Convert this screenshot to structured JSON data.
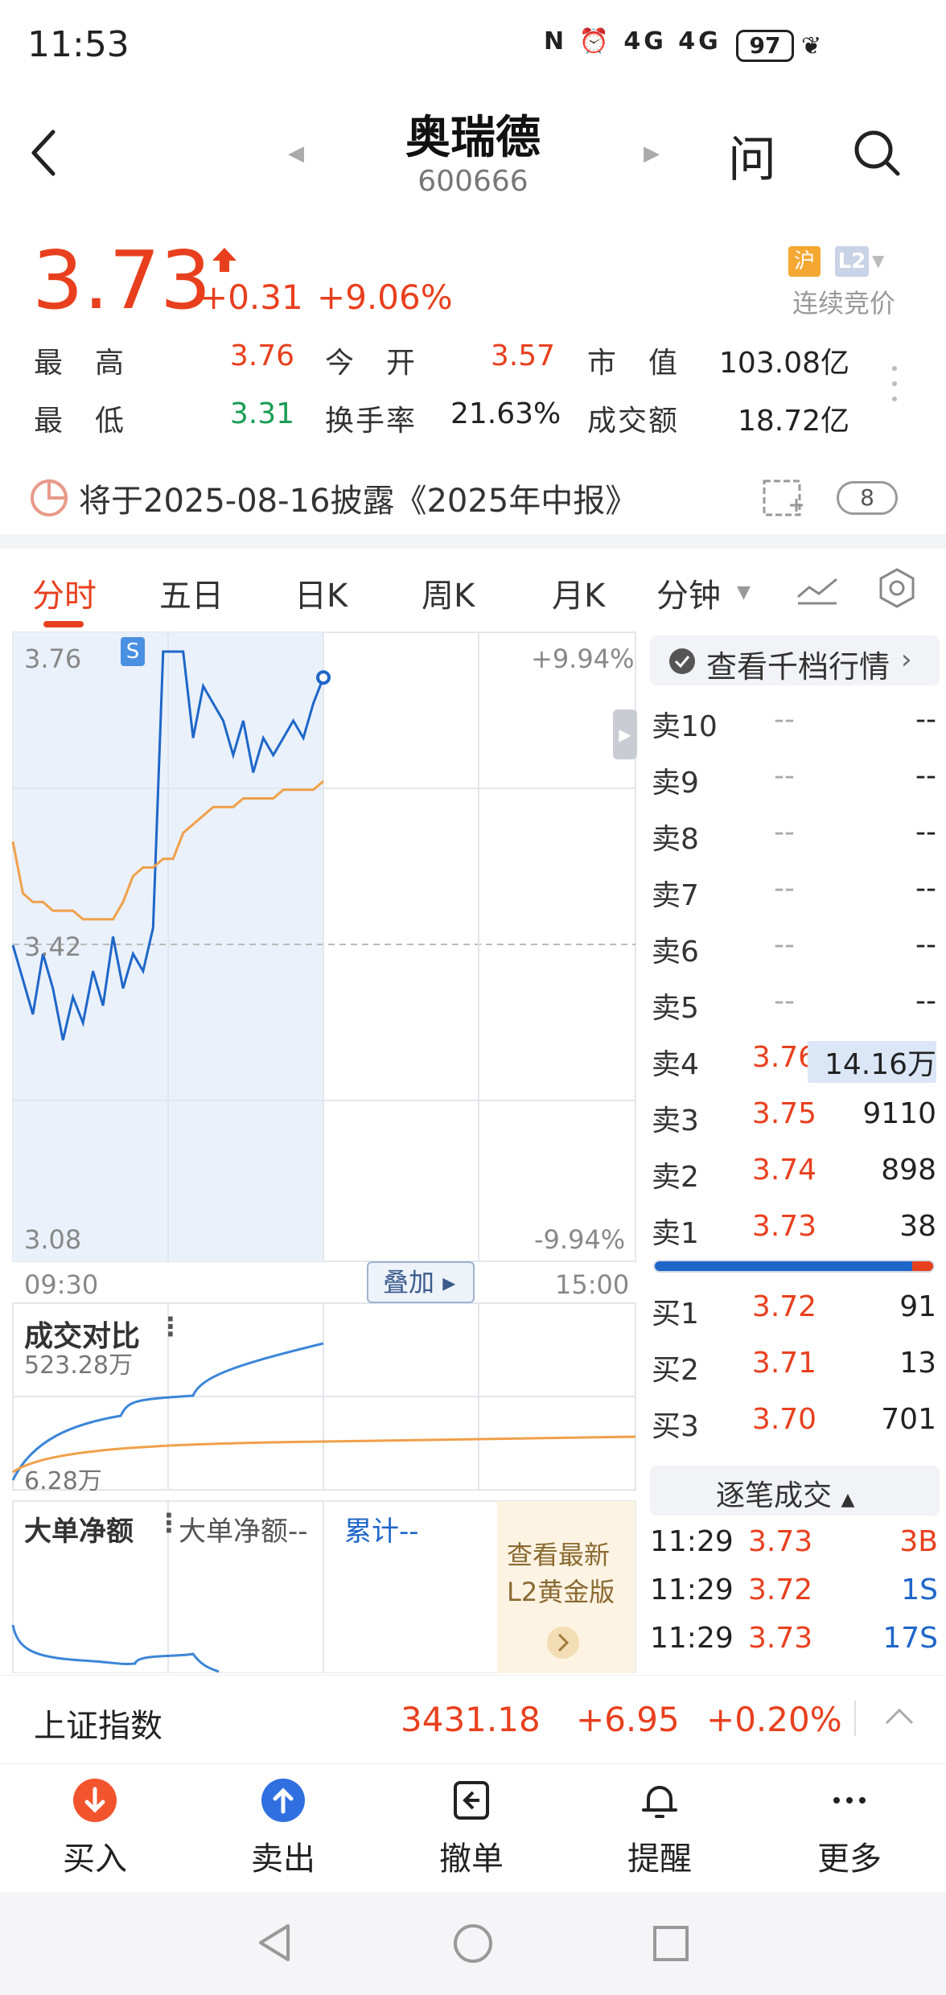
{
  "status": {
    "time": "11:53",
    "icons": "N ⏰ 4G 4G",
    "battery": "97"
  },
  "header": {
    "title": "奥瑞德",
    "code": "600666",
    "ask": "问"
  },
  "quote": {
    "price": "3.73",
    "change": "+0.31",
    "change_pct": "+9.06%",
    "badge_market": "沪",
    "badge_level": "L2",
    "auction_status": "连续竞价",
    "rows": [
      {
        "l1": "最　高",
        "v1": "3.76",
        "l2": "今　开",
        "v2": "3.57",
        "l3": "市　值",
        "v3": "103.08亿"
      },
      {
        "l1": "最　低",
        "v1": "3.31",
        "l2": "换手率",
        "v2": "21.63%",
        "l3": "成交额",
        "v3": "18.72亿"
      }
    ]
  },
  "report": {
    "text": "将于2025-08-16披露《2025年中报》",
    "badge": "8"
  },
  "tabs": [
    "分时",
    "五日",
    "日K",
    "周K",
    "月K",
    "分钟"
  ],
  "chart": {
    "y_top": "3.76",
    "y_mid": "3.42",
    "y_bottom": "3.08",
    "pct_top": "+9.94%",
    "pct_bottom": "-9.94%",
    "x_start": "09:30",
    "x_end": "15:00",
    "overlay_label": "叠加",
    "s_marker": "S",
    "vol_title": "成交对比",
    "vol_max": "523.28万",
    "vol_min": "6.28万",
    "big_order_title": "大单净额",
    "big_order_sub": "大单净额--",
    "big_order_cum": "累计--",
    "l2_promo": [
      "查看最新",
      "L2黄金版"
    ]
  },
  "chart_data": {
    "type": "line",
    "title": "",
    "xlabel": "",
    "ylabel": "",
    "x_range": [
      "09:30",
      "15:00"
    ],
    "ylim": [
      3.08,
      3.76
    ],
    "reference_price": 3.42,
    "series": [
      {
        "values": [
          3.42,
          3.38,
          3.34,
          3.41,
          3.37,
          3.31,
          3.36,
          3.33,
          3.39,
          3.35,
          3.43,
          3.37,
          3.41,
          3.39,
          3.44,
          3.76,
          3.76,
          3.76,
          3.66,
          3.72,
          3.7,
          3.68,
          3.64,
          3.68,
          3.62,
          3.66,
          3.64,
          3.66,
          3.68,
          3.66,
          3.7,
          3.73
        ]
      },
      {
        "values": [
          3.54,
          3.48,
          3.47,
          3.47,
          3.46,
          3.46,
          3.46,
          3.45,
          3.45,
          3.45,
          3.45,
          3.47,
          3.5,
          3.51,
          3.51,
          3.52,
          3.52,
          3.55,
          3.56,
          3.57,
          3.58,
          3.58,
          3.58,
          3.59,
          3.59,
          3.59,
          3.59,
          3.6,
          3.6,
          3.6,
          3.6,
          3.61
        ]
      }
    ]
  },
  "order_book": {
    "view_levels": "查看千档行情",
    "asks": [
      {
        "label": "卖10",
        "price": "--",
        "vol": "--"
      },
      {
        "label": "卖9",
        "price": "--",
        "vol": "--"
      },
      {
        "label": "卖8",
        "price": "--",
        "vol": "--"
      },
      {
        "label": "卖7",
        "price": "--",
        "vol": "--"
      },
      {
        "label": "卖6",
        "price": "--",
        "vol": "--"
      },
      {
        "label": "卖5",
        "price": "--",
        "vol": "--"
      },
      {
        "label": "卖4",
        "price": "3.76",
        "vol": "14.16万"
      },
      {
        "label": "卖3",
        "price": "3.75",
        "vol": "9110"
      },
      {
        "label": "卖2",
        "price": "3.74",
        "vol": "898"
      },
      {
        "label": "卖1",
        "price": "3.73",
        "vol": "38"
      }
    ],
    "bids": [
      {
        "label": "买1",
        "price": "3.72",
        "vol": "91"
      },
      {
        "label": "买2",
        "price": "3.71",
        "vol": "13"
      },
      {
        "label": "买3",
        "price": "3.70",
        "vol": "701"
      }
    ],
    "trades_title": "逐笔成交",
    "trades": [
      {
        "time": "11:29",
        "price": "3.73",
        "vol": "3B"
      },
      {
        "time": "11:29",
        "price": "3.72",
        "vol": "1S"
      },
      {
        "time": "11:29",
        "price": "3.73",
        "vol": "17S"
      }
    ]
  },
  "index_bar": {
    "name": "上证指数",
    "value": "3431.18",
    "change": "+6.95",
    "pct": "+0.20%"
  },
  "toolbar": [
    "买入",
    "卖出",
    "撤单",
    "提醒",
    "更多"
  ],
  "colors": {
    "up": "#e8401e",
    "down": "#1a9d54",
    "price_line": "#1f66c9",
    "avg_line": "#f0a04a"
  }
}
